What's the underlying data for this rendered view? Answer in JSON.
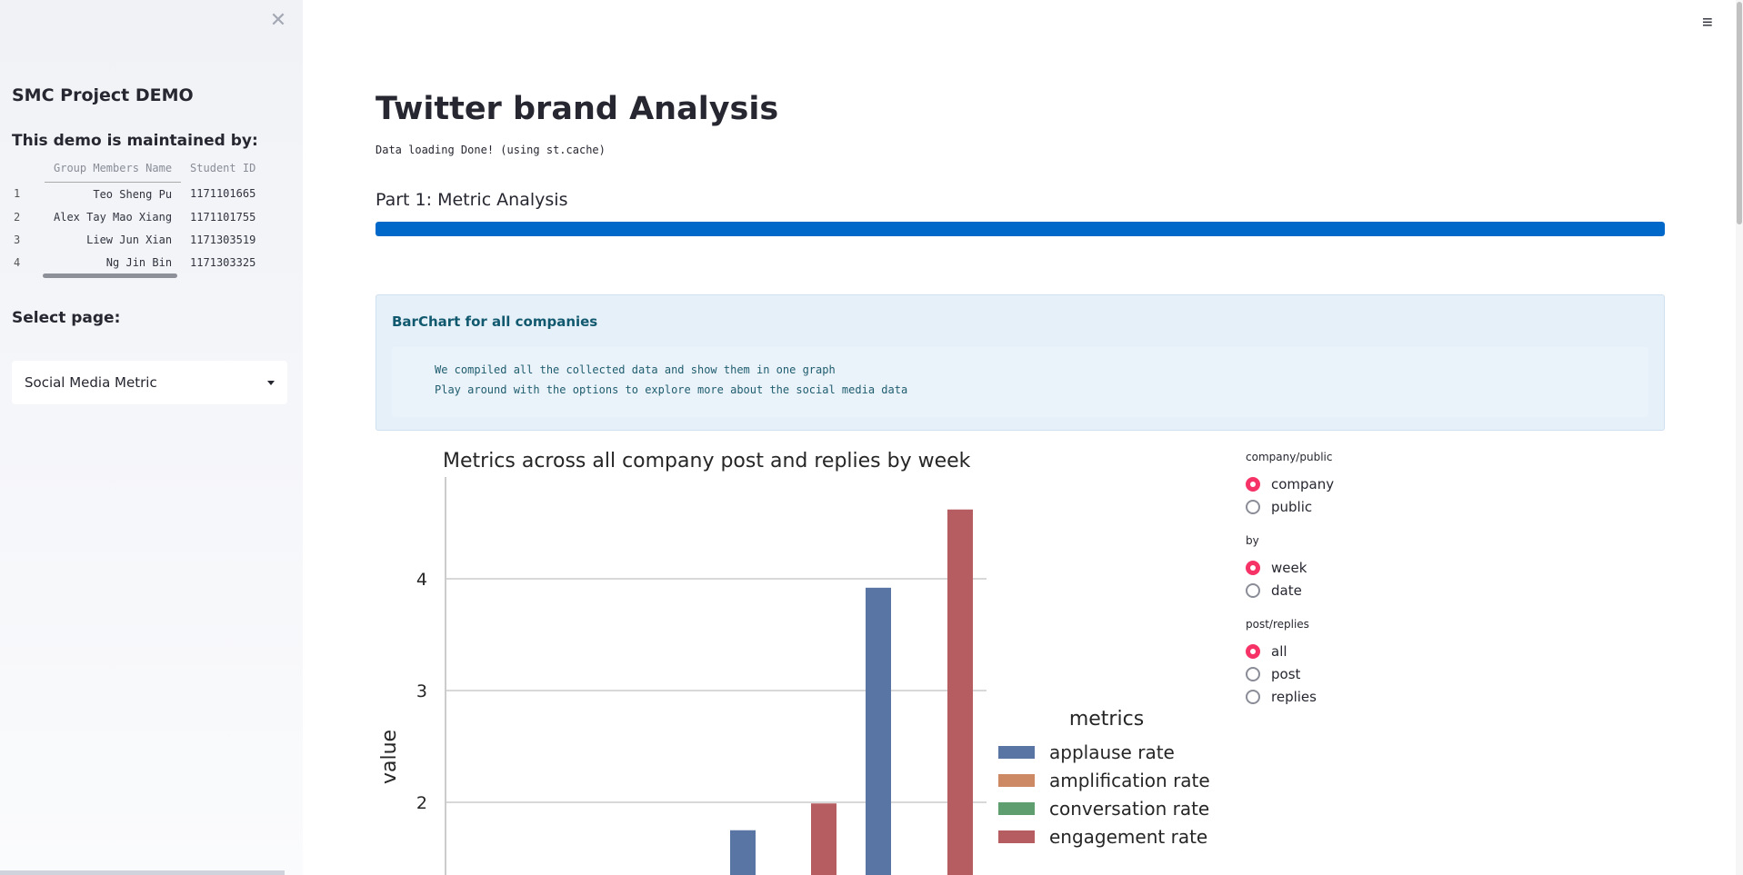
{
  "sidebar": {
    "title": "SMC Project DEMO",
    "maintained_by": "This demo is maintained by:",
    "table": {
      "headers": [
        "",
        "Group Members Name",
        "Student ID"
      ],
      "rows": [
        {
          "idx": "1",
          "name": "Teo Sheng Pu",
          "id": "1171101665"
        },
        {
          "idx": "2",
          "name": "Alex Tay Mao Xiang",
          "id": "1171101755"
        },
        {
          "idx": "3",
          "name": "Liew Jun Xian",
          "id": "1171303519"
        },
        {
          "idx": "4",
          "name": "Ng Jin Bin",
          "id": "1171303325"
        }
      ]
    },
    "select_label": "Select page:",
    "select_value": "Social Media Metric",
    "close_icon": "close-icon"
  },
  "header": {
    "menu_icon": "hamburger-menu-icon"
  },
  "main": {
    "title": "Twitter brand Analysis",
    "loading": "Data loading Done! (using st.cache)",
    "part_heading": "Part 1: Metric Analysis",
    "progress_percent": 100,
    "progress_color": "#0068c9",
    "info": {
      "title": "BarChart for all companies",
      "code_lines": [
        "We compiled all the collected data and show them in one graph",
        "Play around with the options to explore more about the social media data"
      ]
    }
  },
  "controls": {
    "groups": [
      {
        "label": "company/public",
        "options": [
          "company",
          "public"
        ],
        "selected": "company"
      },
      {
        "label": "by",
        "options": [
          "week",
          "date"
        ],
        "selected": "week"
      },
      {
        "label": "post/replies",
        "options": [
          "all",
          "post",
          "replies"
        ],
        "selected": "all"
      }
    ],
    "accent": "#f63366"
  },
  "chart_data": {
    "type": "bar",
    "title": "Metrics across all company post and replies by week",
    "ylabel": "value",
    "ylim": [
      1.2,
      4.7
    ],
    "yticks": [
      2,
      3,
      4
    ],
    "legend_title": "metrics",
    "legend_position": "right",
    "grid": true,
    "series": [
      {
        "name": "applause rate",
        "color": "#5875a4"
      },
      {
        "name": "amplification rate",
        "color": "#cc8963"
      },
      {
        "name": "conversation rate",
        "color": "#5f9e6e"
      },
      {
        "name": "engagement rate",
        "color": "#b55d60"
      }
    ],
    "visible_bars": [
      {
        "series": "applause rate",
        "group": 0,
        "value": 1.75
      },
      {
        "series": "engagement rate",
        "group": 0,
        "value": 1.99
      },
      {
        "series": "applause rate",
        "group": 1,
        "value": 3.92
      },
      {
        "series": "engagement rate",
        "group": 1,
        "value": 4.62
      }
    ]
  }
}
